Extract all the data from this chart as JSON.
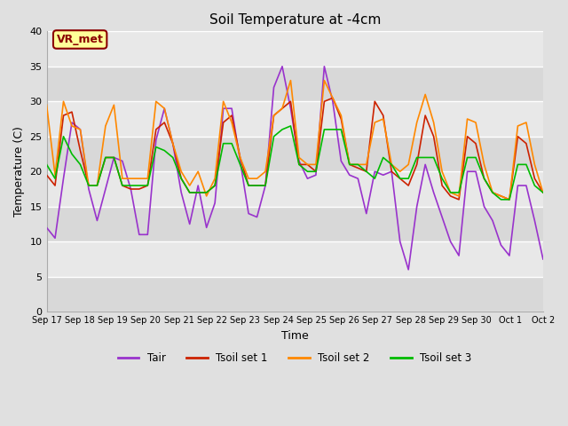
{
  "title": "Soil Temperature at -4cm",
  "xlabel": "Time",
  "ylabel": "Temperature (C)",
  "ylim": [
    0,
    40
  ],
  "yticks": [
    0,
    5,
    10,
    15,
    20,
    25,
    30,
    35,
    40
  ],
  "xtick_labels": [
    "Sep 17",
    "Sep 18",
    "Sep 19",
    "Sep 20",
    "Sep 21",
    "Sep 22",
    "Sep 23",
    "Sep 24",
    "Sep 25",
    "Sep 26",
    "Sep 27",
    "Sep 28",
    "Sep 29",
    "Sep 30",
    "Oct 1",
    "Oct 2"
  ],
  "bg_color": "#e0e0e0",
  "plot_bg_color": "#e0e0e0",
  "band_light": "#e8e8e8",
  "band_dark": "#d8d8d8",
  "grid_color": "#ffffff",
  "annotation_text": "VR_met",
  "annotation_bg": "#ffff99",
  "annotation_border": "#8b0000",
  "colors": {
    "Tair": "#9933cc",
    "Tsoil set 1": "#cc2200",
    "Tsoil set 2": "#ff8800",
    "Tsoil set 3": "#00bb00"
  },
  "legend_labels": [
    "Tair",
    "Tsoil set 1",
    "Tsoil set 2",
    "Tsoil set 3"
  ],
  "Tair": [
    12,
    10.5,
    19,
    27,
    26,
    17.5,
    13,
    17.5,
    22,
    21.5,
    17.5,
    11,
    11,
    24.5,
    29,
    24,
    17,
    12.5,
    18,
    12,
    15.5,
    29,
    29,
    21.5,
    14,
    13.5,
    18,
    32,
    35,
    29,
    21.5,
    19,
    19.5,
    35,
    30,
    21.5,
    19.5,
    19,
    14,
    20,
    19.5,
    20,
    10,
    6,
    15,
    21,
    17,
    13.5,
    10,
    8,
    20,
    20,
    15,
    13,
    9.5,
    8,
    18,
    18,
    13,
    7.5
  ],
  "Tsoil_set1": [
    19.5,
    18,
    28,
    28.5,
    23,
    18,
    18,
    22,
    22,
    18,
    17.5,
    17.5,
    18,
    26,
    27,
    24,
    19,
    17,
    17,
    17,
    18,
    27,
    28,
    22,
    18,
    18,
    18,
    28,
    29,
    30,
    21,
    21,
    20,
    30,
    30.5,
    27.5,
    21,
    20.5,
    20,
    30,
    28,
    20,
    19,
    18,
    21,
    28,
    25,
    18,
    16.5,
    16,
    25,
    24,
    19,
    17,
    16.5,
    16,
    25,
    24,
    19,
    17
  ],
  "Tsoil_set2": [
    29.5,
    19.5,
    30,
    26.5,
    26,
    18,
    18,
    26.5,
    29.5,
    19,
    19,
    19,
    19,
    30,
    29,
    24,
    20,
    18,
    20,
    16.5,
    19,
    30,
    27,
    22,
    19,
    19,
    20,
    28,
    29,
    33,
    22,
    21,
    21,
    33,
    30.5,
    28,
    21,
    21,
    21,
    27,
    27.5,
    21,
    20,
    21,
    27,
    31,
    27,
    20,
    17,
    16.5,
    27.5,
    27,
    21,
    17,
    16.5,
    16,
    26.5,
    27,
    21,
    17
  ],
  "Tsoil_set3": [
    21,
    19,
    25,
    22.5,
    21,
    18,
    18,
    22,
    22,
    18,
    18,
    18,
    18,
    23.5,
    23,
    22,
    19,
    17,
    17,
    17,
    18,
    24,
    24,
    21,
    18,
    18,
    18,
    25,
    26,
    26.5,
    21,
    20,
    20,
    26,
    26,
    26,
    21,
    21,
    20,
    19,
    22,
    21,
    19,
    19,
    22,
    22,
    22,
    19,
    17,
    17,
    22,
    22,
    19,
    17,
    16,
    16,
    21,
    21,
    18,
    17
  ]
}
